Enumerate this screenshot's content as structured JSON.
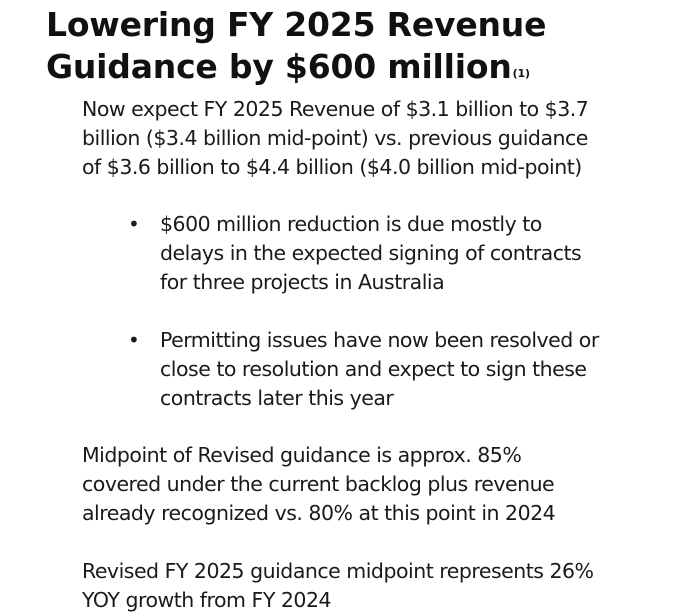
{
  "title": {
    "line1": "Lowering FY 2025 Revenue",
    "line2": "Guidance by $600 million",
    "footnote": "(1)"
  },
  "intro": {
    "lines": [
      "Now expect FY 2025 Revenue of $3.1 billion to  $3.7",
      "billion ($3.4 billion mid-point) vs. previous  guidance",
      "of $3.6 billion to $4.4 billion ($4.0 billion mid-point)"
    ]
  },
  "bullets": [
    {
      "lines": [
        "$600 million reduction is due mostly to",
        "delays in the expected signing of contracts",
        "for three projects in Australia"
      ]
    },
    {
      "lines": [
        "Permitting issues have now been resolved or",
        "close to resolution and expect to sign these",
        "contracts later this year"
      ]
    }
  ],
  "bullet_symbol": "•",
  "midpoint": {
    "lines": [
      "Midpoint of Revised guidance is approx. 85%",
      "covered under the current backlog plus revenue",
      "already recognized vs. 80% at this point in 2024"
    ]
  },
  "growth": {
    "lines": [
      "Revised FY 2025 guidance midpoint represents 26%",
      "YOY growth from FY 2024"
    ]
  }
}
